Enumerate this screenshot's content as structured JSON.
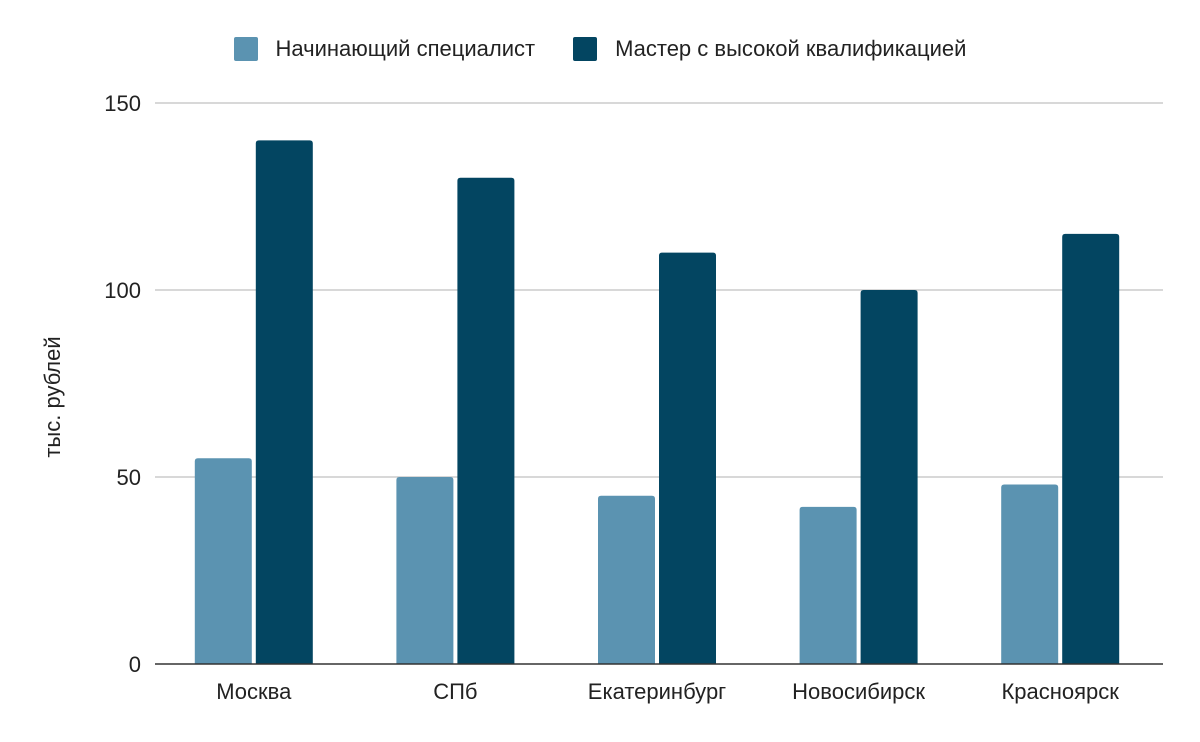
{
  "chart_data": {
    "type": "bar",
    "title": "",
    "xlabel": "",
    "ylabel": "тыс. рублей",
    "categories": [
      "Москва",
      "СПб",
      "Екатеринбург",
      "Новосибирск",
      "Красноярск"
    ],
    "series": [
      {
        "name": "Начинающий специалист",
        "color": "#5b93b1",
        "values": [
          55,
          50,
          45,
          42,
          48
        ]
      },
      {
        "name": "Мастер с высокой квалификацией",
        "color": "#034561",
        "values": [
          140,
          130,
          110,
          100,
          115
        ]
      }
    ],
    "ylim": [
      0,
      150
    ],
    "yticks": [
      "0",
      "50",
      "100",
      "150"
    ],
    "grid": true,
    "legend_position": "top"
  }
}
